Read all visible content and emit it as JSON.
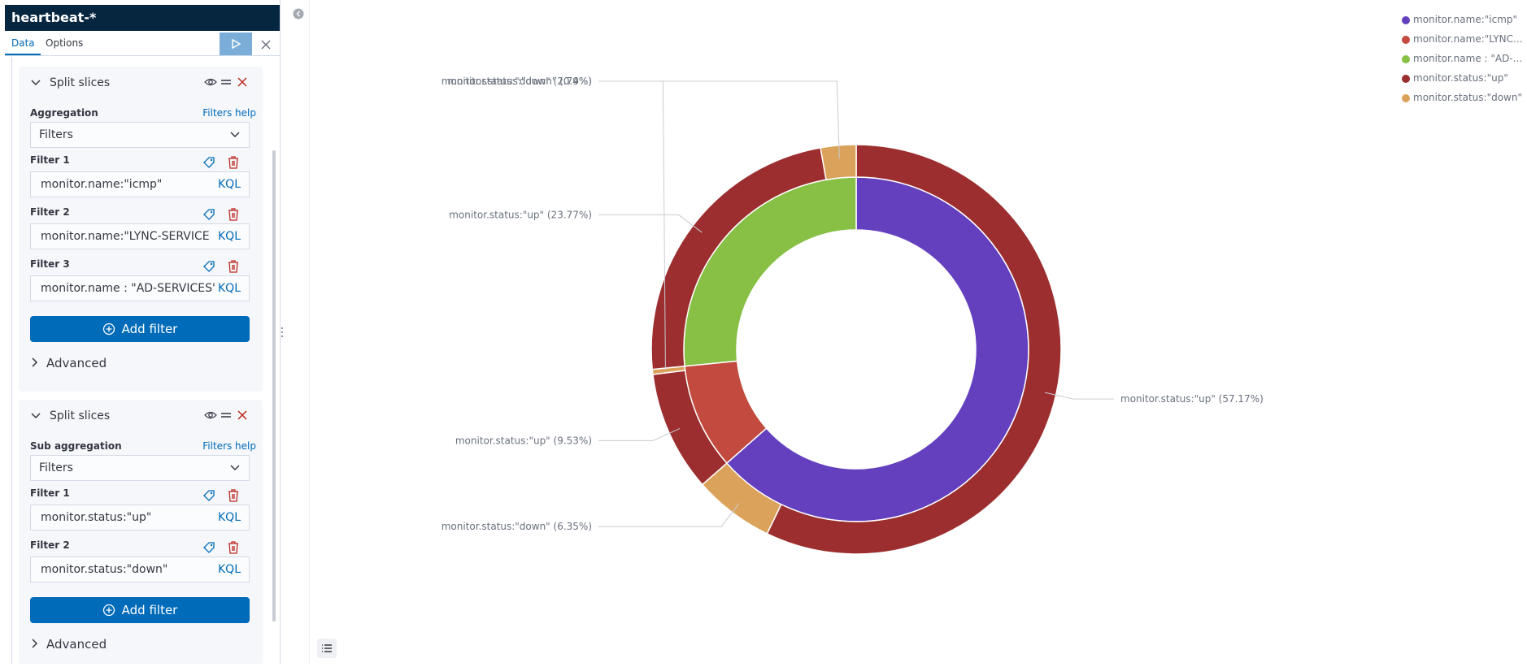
{
  "sidebar": {
    "index_title": "heartbeat-*",
    "tabs": {
      "data": "Data",
      "options": "Options"
    },
    "split1": {
      "title": "Split slices",
      "agg_label": "Aggregation",
      "help": "Filters help",
      "agg_value": "Filters",
      "filters": [
        {
          "label": "Filter 1",
          "value": "monitor.name:\"icmp\"",
          "lang": "KQL"
        },
        {
          "label": "Filter 2",
          "value": "monitor.name:\"LYNC-SERVICE",
          "lang": "KQL"
        },
        {
          "label": "Filter 3",
          "value": "monitor.name : \"AD-SERVICES'",
          "lang": "KQL"
        }
      ],
      "add_filter": "Add filter",
      "advanced": "Advanced"
    },
    "split2": {
      "title": "Split slices",
      "agg_label": "Sub aggregation",
      "help": "Filters help",
      "agg_value": "Filters",
      "filters": [
        {
          "label": "Filter 1",
          "value": "monitor.status:\"up\"",
          "lang": "KQL"
        },
        {
          "label": "Filter 2",
          "value": "monitor.status:\"down\"",
          "lang": "KQL"
        }
      ],
      "add_filter": "Add filter",
      "advanced": "Advanced"
    }
  },
  "legend": [
    {
      "label": "monitor.name:\"icmp\"",
      "color": "#6440be"
    },
    {
      "label": "monitor.name:\"LYNC...",
      "color": "#c24a3e"
    },
    {
      "label": "monitor.name : \"AD-...",
      "color": "#87c044"
    },
    {
      "label": "monitor.status:\"up\"",
      "color": "#9c2e2f"
    },
    {
      "label": "monitor.status:\"down\"",
      "color": "#dba25b"
    }
  ],
  "chart_data": {
    "type": "pie",
    "donut": true,
    "inner_ring": [
      {
        "label": "monitor.name:\"icmp\"",
        "value": 63.52,
        "color": "#6440be"
      },
      {
        "label": "monitor.name:\"LYNC-SERVICE\"",
        "value": 9.93,
        "color": "#c24a3e"
      },
      {
        "label": "monitor.name : \"AD-SERVICES\"",
        "value": 26.56,
        "color": "#87c044"
      }
    ],
    "outer_ring": [
      {
        "label": "monitor.status:\"up\" (57.17%)",
        "value": 57.17,
        "color": "#9c2e2f"
      },
      {
        "label": "monitor.status:\"down\" (6.35%)",
        "value": 6.35,
        "color": "#dba25b"
      },
      {
        "label": "monitor.status:\"up\" (9.53%)",
        "value": 9.53,
        "color": "#9c2e2f"
      },
      {
        "label": "monitor.status:\"down\" (0.4%)",
        "value": 0.4,
        "color": "#dba25b"
      },
      {
        "label": "monitor.status:\"up\" (23.77%)",
        "value": 23.77,
        "color": "#9c2e2f"
      },
      {
        "label": "monitor.status:\"down\" (2.79%)",
        "value": 2.79,
        "color": "#dba25b"
      }
    ]
  }
}
